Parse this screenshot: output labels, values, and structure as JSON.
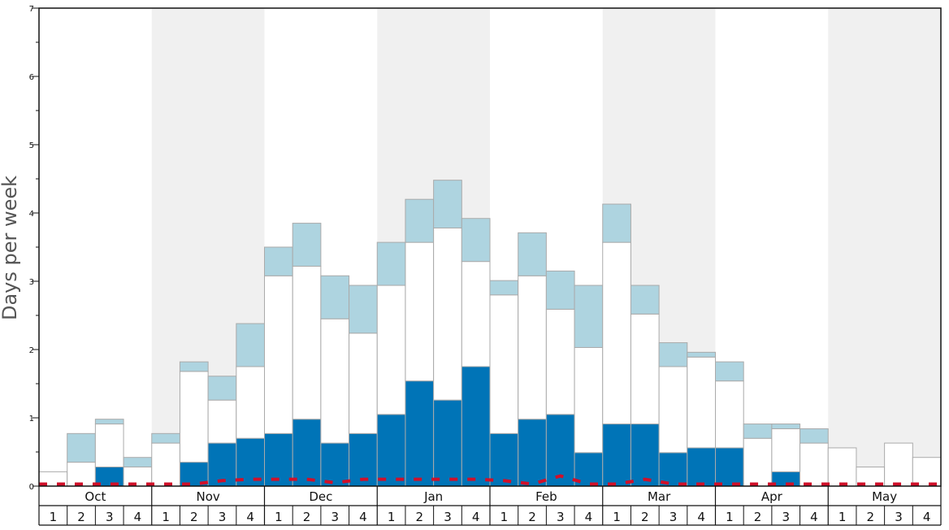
{
  "chart_data": {
    "type": "bar",
    "stacked": true,
    "ylabel": "Days per week",
    "ylim": [
      0,
      7
    ],
    "y_ticks": [
      "0",
      "1",
      "2",
      "3",
      "4",
      "5",
      "6",
      "7"
    ],
    "months": [
      "Oct",
      "Nov",
      "Dec",
      "Jan",
      "Feb",
      "Mar",
      "Apr",
      "May"
    ],
    "week_labels": [
      "1",
      "2",
      "3",
      "4",
      "1",
      "2",
      "3",
      "4",
      "1",
      "2",
      "3",
      "4",
      "1",
      "2",
      "3",
      "4",
      "1",
      "2",
      "3",
      "4",
      "1",
      "2",
      "3",
      "4",
      "1",
      "2",
      "3",
      "4",
      "1",
      "2",
      "3",
      "4"
    ],
    "alternating_month_shading": true,
    "colors": {
      "dark": "#0074b7",
      "white": "#ffffff",
      "light": "#aed4e0",
      "line": "#d0102a",
      "band": "#f0f0f0",
      "border": "#aaaaaa"
    },
    "series": [
      {
        "values": [
          0,
          0,
          0.28,
          0,
          0,
          0.35,
          0.63,
          0.7,
          0.77,
          0.98,
          0.63,
          0.77,
          1.05,
          1.54,
          1.26,
          1.75,
          0.77,
          0.98,
          1.05,
          0.49,
          0.91,
          0.91,
          0.49,
          0.56,
          0.56,
          0,
          0.21,
          0,
          0,
          0,
          0,
          0
        ]
      },
      {
        "values": [
          0.21,
          0.35,
          0.63,
          0.28,
          0.63,
          1.33,
          0.63,
          1.05,
          2.31,
          2.24,
          1.82,
          1.47,
          1.89,
          2.03,
          2.52,
          1.54,
          2.03,
          2.1,
          1.54,
          1.54,
          2.66,
          1.61,
          1.26,
          1.33,
          0.98,
          0.7,
          0.63,
          0.63,
          0.56,
          0.28,
          0.63,
          0.42
        ]
      },
      {
        "values": [
          0,
          0.42,
          0.07,
          0.14,
          0.14,
          0.14,
          0.35,
          0.63,
          0.42,
          0.63,
          0.63,
          0.7,
          0.63,
          0.63,
          0.7,
          0.63,
          0.21,
          0.63,
          0.56,
          0.91,
          0.56,
          0.42,
          0.35,
          0.07,
          0.28,
          0.21,
          0.07,
          0.21,
          0,
          0,
          0,
          0
        ]
      }
    ],
    "line_series": {
      "values": [
        0.03,
        0.03,
        0.03,
        0.03,
        0.03,
        0.03,
        0.08,
        0.1,
        0.1,
        0.1,
        0.05,
        0.1,
        0.1,
        0.1,
        0.1,
        0.1,
        0.08,
        0.03,
        0.15,
        0.03,
        0.03,
        0.1,
        0.03,
        0.03,
        0.03,
        0.03,
        0.03,
        0.03,
        0.03,
        0.03,
        0.03,
        0.03
      ]
    }
  }
}
